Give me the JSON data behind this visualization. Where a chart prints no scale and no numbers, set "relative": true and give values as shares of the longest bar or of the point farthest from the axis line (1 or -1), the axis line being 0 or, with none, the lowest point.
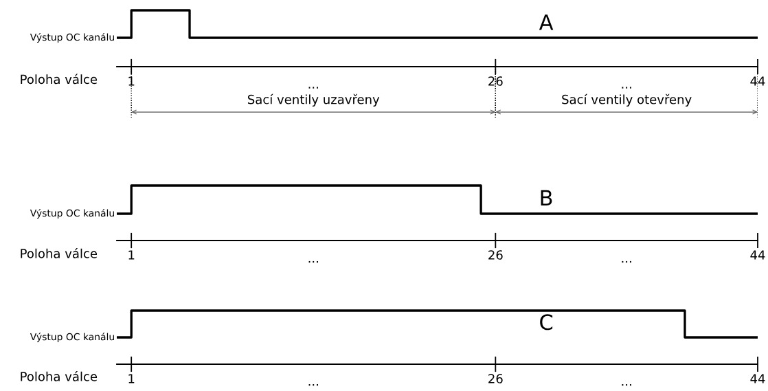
{
  "chart_data": [
    {
      "type": "line",
      "title": "A",
      "ylabel": "Výstup OC kanálu",
      "xlabel": "Poloha válce",
      "relative": true,
      "series": [
        {
          "x": [
            0,
            1,
            1,
            5,
            5,
            44
          ],
          "values": [
            0,
            0,
            1,
            1,
            0,
            0
          ],
          "color": "#000000"
        }
      ],
      "xlim": [
        0,
        44
      ],
      "xticks": [
        1,
        26,
        44
      ],
      "annotations": [
        "...",
        "...",
        "Sací ventily uzavřeny",
        "Sací ventily otevřeny"
      ],
      "tick_labels": "x"
    },
    {
      "type": "line",
      "title": "B",
      "ylabel": "Výstup OC kanálu",
      "xlabel": "Poloha válce",
      "relative": true,
      "series": [
        {
          "x": [
            0,
            1,
            1,
            25,
            25,
            44
          ],
          "values": [
            0,
            0,
            1,
            1,
            0,
            0
          ],
          "color": "#000000"
        }
      ],
      "xlim": [
        0,
        44
      ],
      "xticks": [
        1,
        26,
        44
      ],
      "annotations": [
        "...",
        "..."
      ],
      "tick_labels": "x"
    },
    {
      "type": "line",
      "title": "C",
      "ylabel": "Výstup OC kanálu",
      "xlabel": "Poloha válce",
      "relative": true,
      "series": [
        {
          "x": [
            0,
            1,
            1,
            39,
            39,
            44
          ],
          "values": [
            0,
            0,
            1,
            1,
            0,
            0
          ],
          "color": "#000000"
        }
      ],
      "xlim": [
        0,
        44
      ],
      "xticks": [
        1,
        26,
        44
      ],
      "annotations": [
        "...",
        "..."
      ],
      "tick_labels": "x"
    }
  ]
}
